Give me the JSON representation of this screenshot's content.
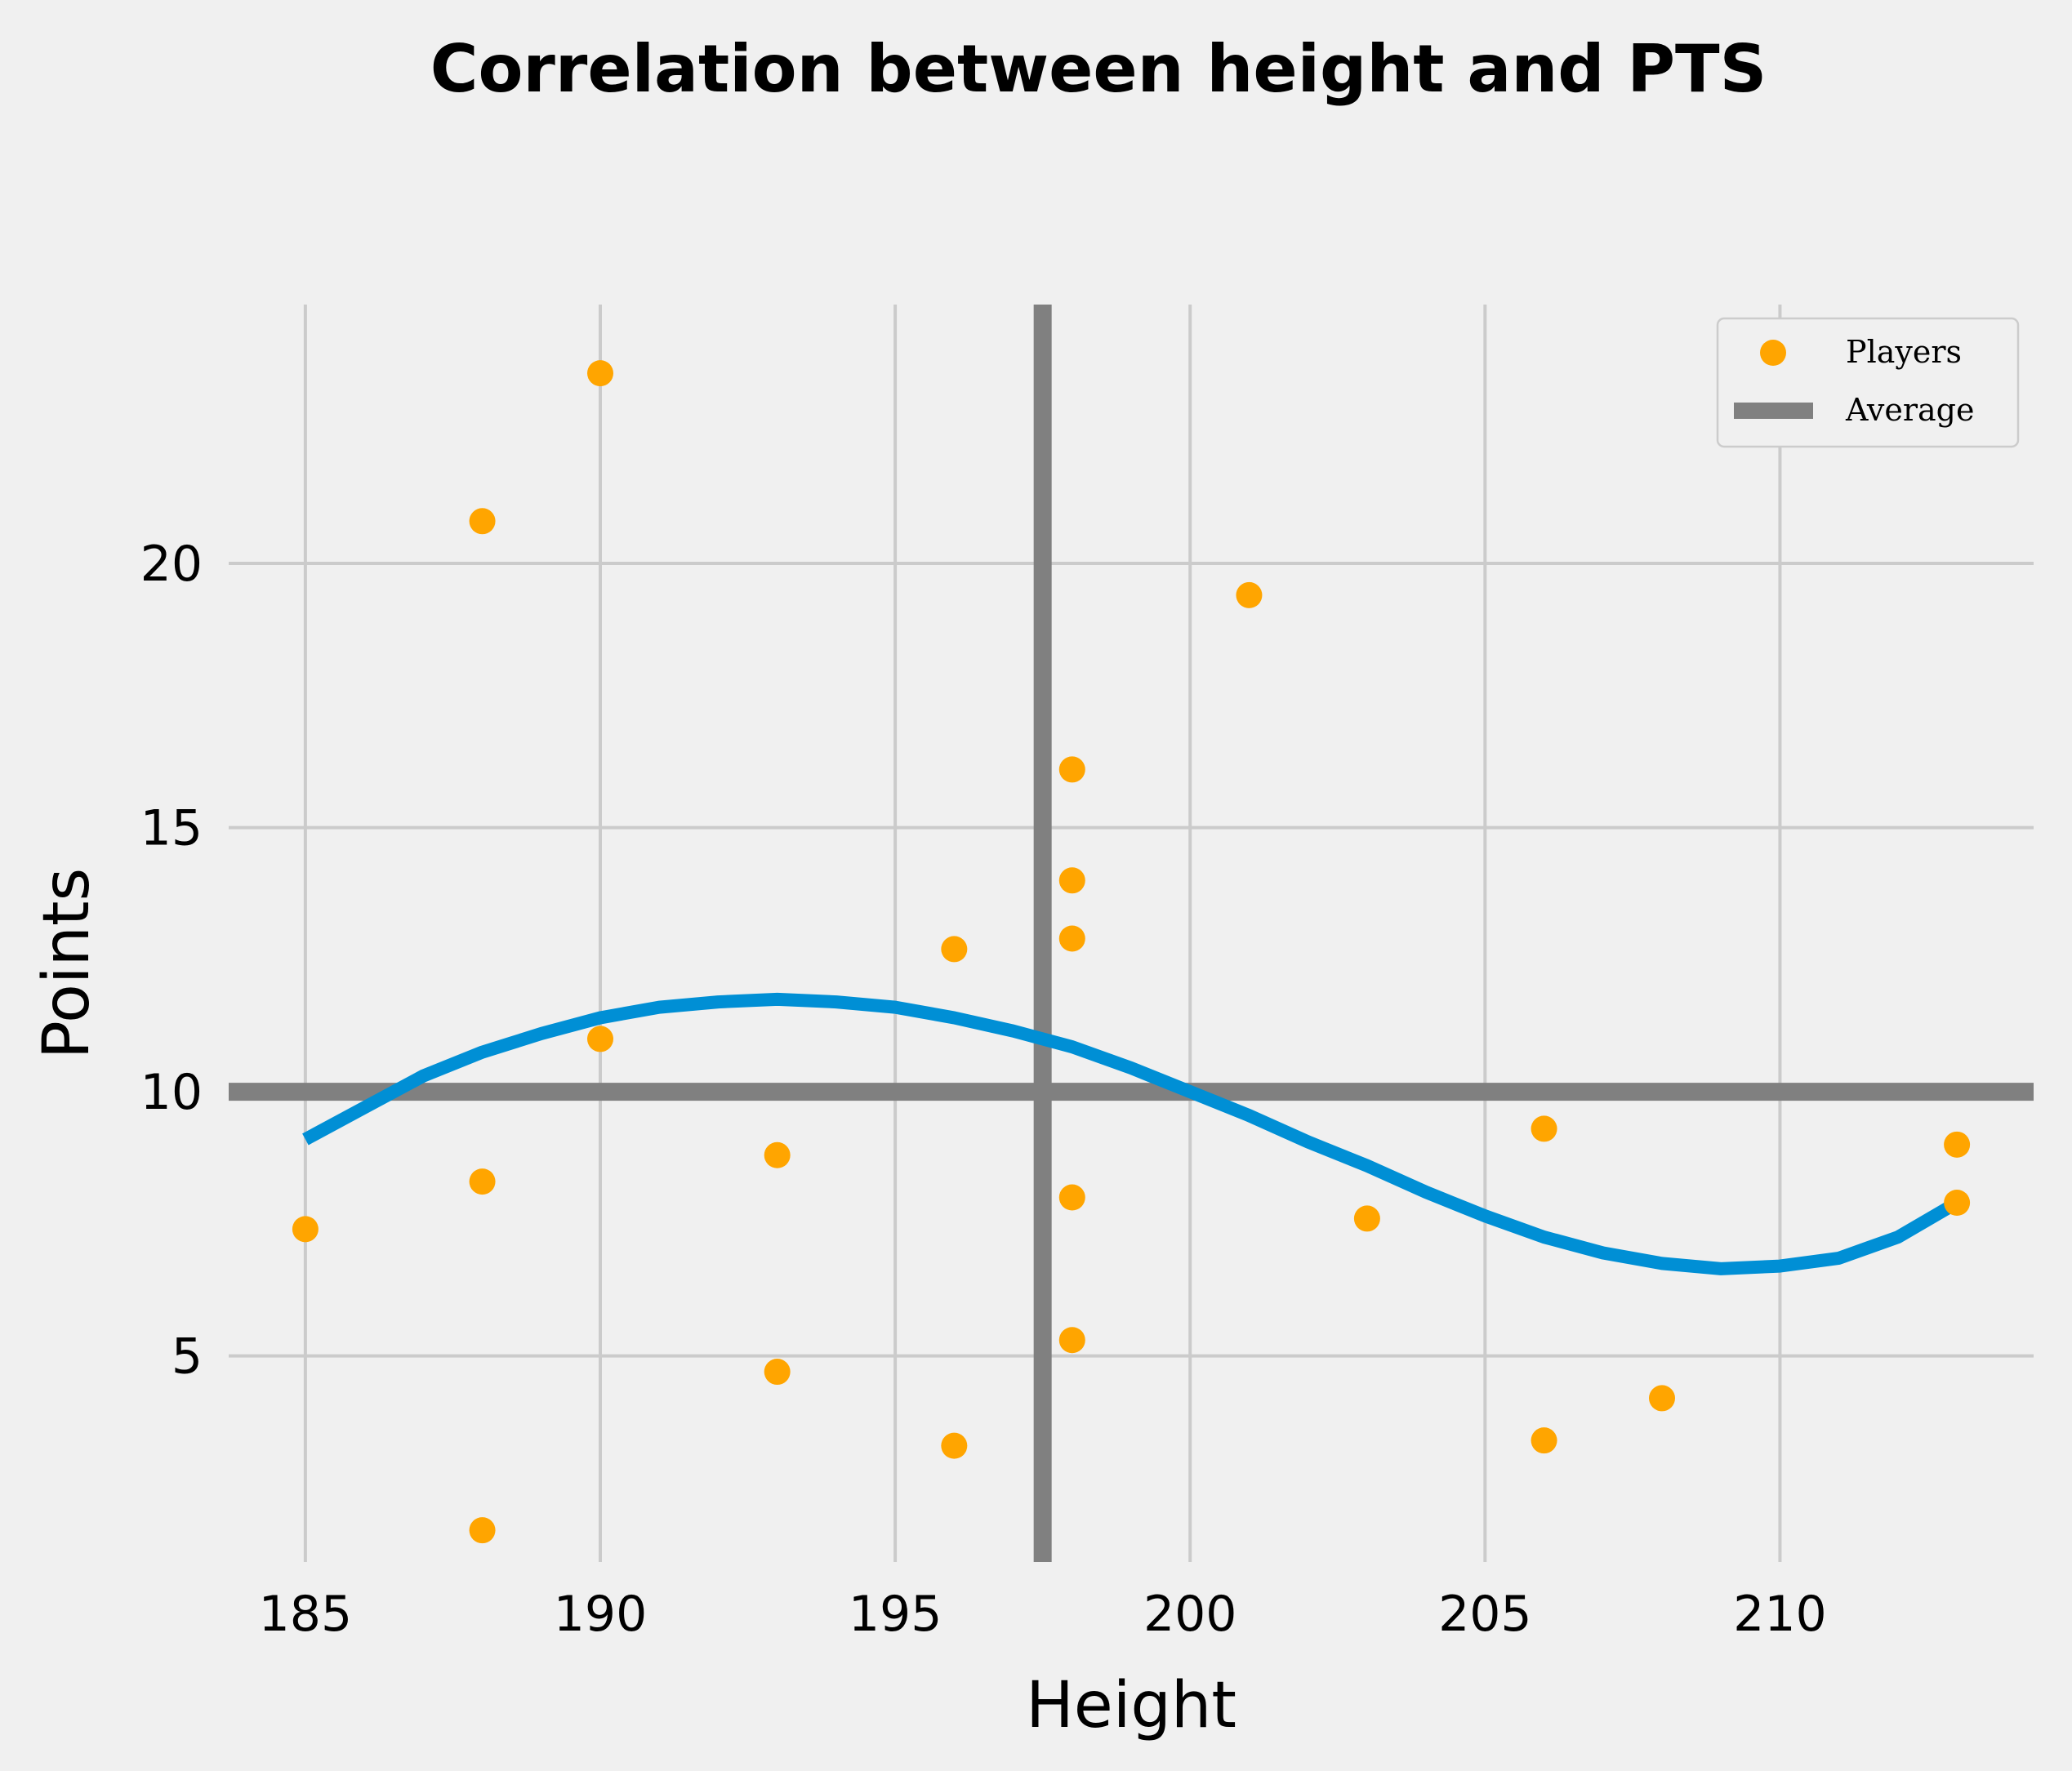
{
  "chart_data": {
    "type": "scatter",
    "title": "Correlation between height and PTS",
    "xlabel": "Height",
    "ylabel": "Points",
    "xlim": [
      183.7,
      214.3
    ],
    "ylim": [
      1.1,
      24.9
    ],
    "x_ticks": [
      185,
      190,
      195,
      200,
      205,
      210
    ],
    "y_ticks": [
      5,
      10,
      15,
      20
    ],
    "grid": true,
    "legend_position": "top-right",
    "colors": {
      "background": "#f0f0f0",
      "grid": "#cbcbcb",
      "points": "#ffa500",
      "average": "#808080",
      "trend": "#008fd5"
    },
    "series": [
      {
        "name": "Players",
        "kind": "scatter",
        "points": [
          [
            185,
            7.4
          ],
          [
            188,
            20.8
          ],
          [
            188,
            8.3
          ],
          [
            188,
            1.7
          ],
          [
            190,
            23.6
          ],
          [
            190,
            11.0
          ],
          [
            193,
            8.8
          ],
          [
            193,
            4.7
          ],
          [
            196,
            12.7
          ],
          [
            196,
            3.3
          ],
          [
            198,
            16.1
          ],
          [
            198,
            14.0
          ],
          [
            198,
            12.9
          ],
          [
            198,
            8.0
          ],
          [
            198,
            5.3
          ],
          [
            201,
            19.4
          ],
          [
            203,
            7.6
          ],
          [
            206,
            9.3
          ],
          [
            206,
            3.4
          ],
          [
            208,
            4.2
          ],
          [
            213,
            9.0
          ],
          [
            213,
            7.9
          ]
        ]
      },
      {
        "name": "Average",
        "kind": "reference-lines",
        "x": 197.5,
        "y": 10
      },
      {
        "kind": "trend-curve",
        "points": [
          [
            185,
            9.1
          ],
          [
            186,
            9.7
          ],
          [
            187,
            10.3
          ],
          [
            188,
            10.75
          ],
          [
            189,
            11.1
          ],
          [
            190,
            11.4
          ],
          [
            191,
            11.6
          ],
          [
            192,
            11.7
          ],
          [
            193,
            11.75
          ],
          [
            194,
            11.7
          ],
          [
            195,
            11.6
          ],
          [
            196,
            11.4
          ],
          [
            197,
            11.15
          ],
          [
            198,
            10.85
          ],
          [
            199,
            10.45
          ],
          [
            200,
            10.0
          ],
          [
            201,
            9.55
          ],
          [
            202,
            9.05
          ],
          [
            203,
            8.6
          ],
          [
            204,
            8.1
          ],
          [
            205,
            7.65
          ],
          [
            206,
            7.25
          ],
          [
            207,
            6.95
          ],
          [
            208,
            6.75
          ],
          [
            209,
            6.65
          ],
          [
            210,
            6.7
          ],
          [
            211,
            6.85
          ],
          [
            212,
            7.25
          ],
          [
            213,
            7.9
          ]
        ]
      }
    ]
  }
}
